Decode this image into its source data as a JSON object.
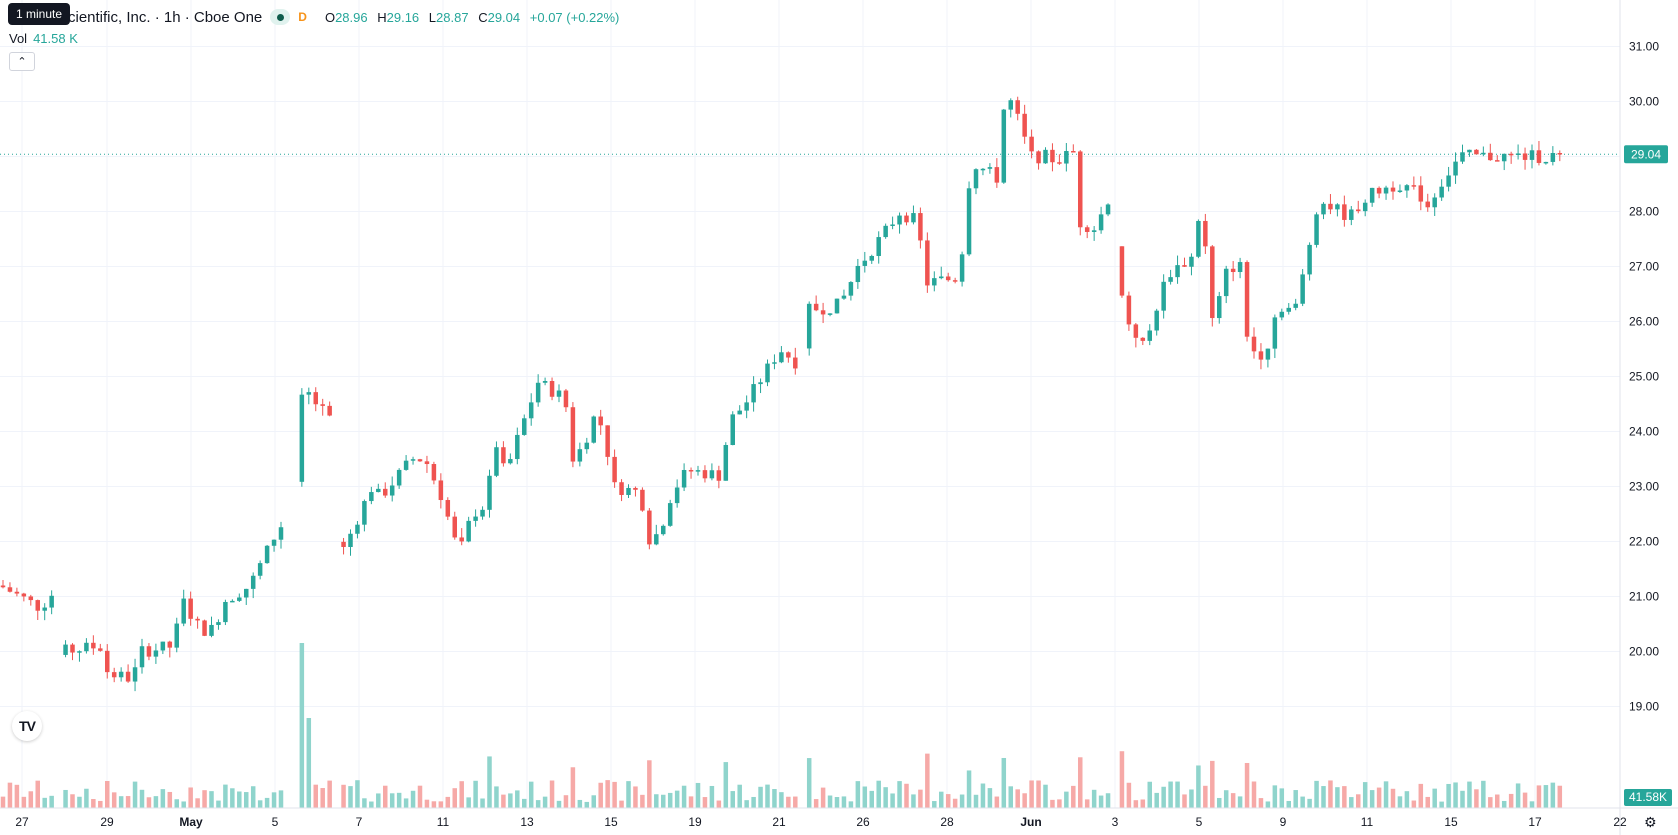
{
  "legend": {
    "symbol_text": "cientific, Inc. · 1h · Cboe One",
    "delay_badge": "D",
    "open_label": "O",
    "open": "28.96",
    "high_label": "H",
    "high": "29.16",
    "low_label": "L",
    "low": "28.87",
    "close_label": "C",
    "close": "29.04",
    "change": "+0.07 (+0.22%)"
  },
  "tooltip": "1 minute",
  "volume_legend": {
    "label": "Vol",
    "value": "41.58 K"
  },
  "collapse_icon": "chevron-up-icon",
  "logo_text": "TV",
  "settings_icon": "gear-icon",
  "colors": {
    "up": "#26a69a",
    "down": "#ef5350",
    "vol_up": "#8fd4cc",
    "vol_down": "#f6a9a7"
  },
  "chart_data": {
    "type": "candlestick",
    "interval": "1h",
    "y_axis": {
      "min": 18.6,
      "max": 31.4,
      "ticks": [
        "31.00",
        "30.00",
        "29.00",
        "28.00",
        "27.00",
        "26.00",
        "25.00",
        "24.00",
        "23.00",
        "22.00",
        "21.00",
        "20.00",
        "19.00"
      ]
    },
    "x_axis_labels": [
      "27",
      "29",
      "May",
      "5",
      "7",
      "11",
      "13",
      "15",
      "19",
      "21",
      "26",
      "28",
      "Jun",
      "3",
      "5",
      "9",
      "11",
      "15",
      "17",
      "22"
    ],
    "bold_labels": [
      "May",
      "Jun"
    ],
    "last_price": "29.04",
    "last_volume": "41.58K",
    "path_anchors": [
      [
        0,
        21.2
      ],
      [
        40,
        20.8
      ],
      [
        55,
        21.1
      ],
      [
        61,
        19.3
      ],
      [
        64,
        20.0
      ],
      [
        100,
        20.1
      ],
      [
        108,
        19.6
      ],
      [
        133,
        19.5
      ],
      [
        140,
        20.0
      ],
      [
        175,
        20.1
      ],
      [
        180,
        21.0
      ],
      [
        200,
        20.4
      ],
      [
        215,
        20.4
      ],
      [
        222,
        20.9
      ],
      [
        250,
        21.2
      ],
      [
        280,
        22.3
      ],
      [
        290,
        22.2
      ],
      [
        297,
        23.6
      ],
      [
        303,
        24.8
      ],
      [
        330,
        24.2
      ],
      [
        336,
        22.0
      ],
      [
        342,
        21.8
      ],
      [
        372,
        23.0
      ],
      [
        380,
        22.8
      ],
      [
        412,
        23.5
      ],
      [
        425,
        23.5
      ],
      [
        442,
        22.8
      ],
      [
        455,
        22.0
      ],
      [
        462,
        21.9
      ],
      [
        472,
        22.5
      ],
      [
        488,
        22.7
      ],
      [
        493,
        24.0
      ],
      [
        505,
        23.2
      ],
      [
        520,
        24.0
      ],
      [
        538,
        24.9
      ],
      [
        565,
        24.6
      ],
      [
        572,
        23.5
      ],
      [
        582,
        23.7
      ],
      [
        595,
        24.3
      ],
      [
        605,
        24.0
      ],
      [
        612,
        23.0
      ],
      [
        640,
        22.9
      ],
      [
        650,
        22.0
      ],
      [
        660,
        22.2
      ],
      [
        672,
        22.9
      ],
      [
        688,
        23.3
      ],
      [
        720,
        23.2
      ],
      [
        730,
        24.2
      ],
      [
        745,
        24.5
      ],
      [
        780,
        25.5
      ],
      [
        800,
        25.2
      ],
      [
        806,
        26.2
      ],
      [
        840,
        26.3
      ],
      [
        858,
        27.0
      ],
      [
        880,
        27.5
      ],
      [
        900,
        28.0
      ],
      [
        918,
        27.8
      ],
      [
        925,
        26.7
      ],
      [
        960,
        26.8
      ],
      [
        965,
        28.0
      ],
      [
        972,
        28.9
      ],
      [
        998,
        28.6
      ],
      [
        1004,
        29.9
      ],
      [
        1012,
        30.0
      ],
      [
        1030,
        29.0
      ],
      [
        1050,
        29.0
      ],
      [
        1055,
        28.9
      ],
      [
        1075,
        29.1
      ],
      [
        1080,
        27.8
      ],
      [
        1095,
        27.7
      ],
      [
        1110,
        28.3
      ],
      [
        1118,
        26.9
      ],
      [
        1125,
        26.1
      ],
      [
        1145,
        25.5
      ],
      [
        1160,
        26.5
      ],
      [
        1170,
        26.9
      ],
      [
        1195,
        27.2
      ],
      [
        1200,
        28.2
      ],
      [
        1208,
        26.9
      ],
      [
        1212,
        26.0
      ],
      [
        1218,
        26.3
      ],
      [
        1228,
        27.0
      ],
      [
        1242,
        27.0
      ],
      [
        1248,
        25.5
      ],
      [
        1265,
        25.4
      ],
      [
        1278,
        26.3
      ],
      [
        1295,
        26.2
      ],
      [
        1305,
        27.0
      ],
      [
        1318,
        28.2
      ],
      [
        1330,
        28.1
      ],
      [
        1350,
        27.9
      ],
      [
        1362,
        28.2
      ],
      [
        1380,
        28.4
      ],
      [
        1400,
        28.5
      ],
      [
        1420,
        28.3
      ],
      [
        1428,
        28.1
      ],
      [
        1440,
        28.5
      ],
      [
        1460,
        29.0
      ]
    ],
    "gaps": [
      [
        58,
        62
      ],
      [
        137,
        140
      ],
      [
        284,
        296
      ],
      [
        333,
        337
      ],
      [
        802,
        808
      ],
      [
        1077,
        1080
      ],
      [
        1115,
        1119
      ]
    ]
  }
}
